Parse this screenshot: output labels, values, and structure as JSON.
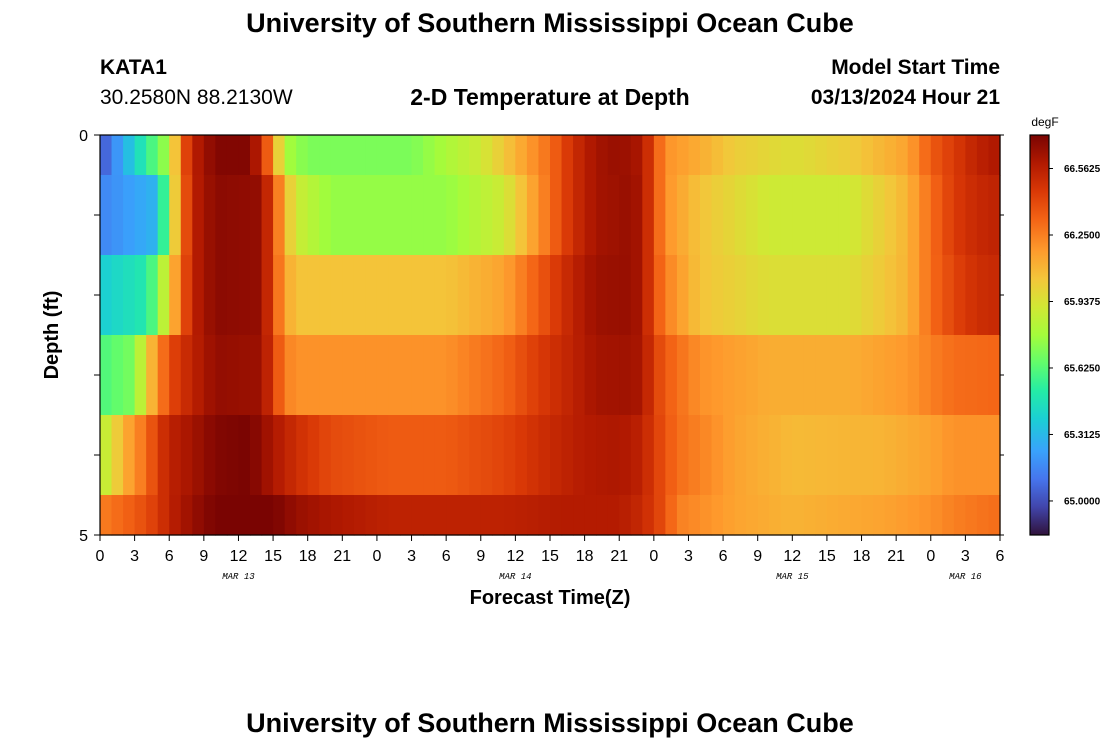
{
  "page": {
    "title": "University of Southern Mississippi Ocean Cube",
    "footer_title": "University of Southern Mississippi Ocean Cube",
    "station_id": "KATA1",
    "station_coords": "30.2580N  88.2130W",
    "plot_title": "2-D Temperature at Depth",
    "model_start_label": "Model Start Time",
    "model_start_value": "03/13/2024 Hour 21"
  },
  "chart_data": {
    "type": "heatmap",
    "title": "2-D Temperature at Depth",
    "xlabel": "Forecast Time(Z)",
    "ylabel": "Depth (ft)",
    "y_tick_labels": [
      "0",
      "5"
    ],
    "ylim": [
      0,
      5
    ],
    "xlim_hours": [
      0,
      78
    ],
    "x_tick_labels": [
      "0",
      "3",
      "6",
      "9",
      "12",
      "15",
      "18",
      "21",
      "0",
      "3",
      "6",
      "9",
      "12",
      "15",
      "18",
      "21",
      "0",
      "3",
      "6",
      "9",
      "12",
      "15",
      "18",
      "21",
      "0",
      "3",
      "6"
    ],
    "date_labels": [
      {
        "label": "MAR 13",
        "hour": 12
      },
      {
        "label": "MAR 14",
        "hour": 36
      },
      {
        "label": "MAR 15",
        "hour": 60
      },
      {
        "label": "MAR 16",
        "hour": 75
      }
    ],
    "colorbar": {
      "units": "degF",
      "min": 64.84,
      "max": 66.72,
      "tick_labels": [
        "65.0000",
        "65.3125",
        "65.6250",
        "65.9375",
        "66.2500",
        "66.5625"
      ],
      "tick_values": [
        65.0,
        65.3125,
        65.625,
        65.9375,
        66.25,
        66.5625
      ]
    },
    "row_depth_ranges": [
      [
        0,
        0.5
      ],
      [
        0.5,
        1.5
      ],
      [
        1.5,
        2.5
      ],
      [
        2.5,
        3.5
      ],
      [
        3.5,
        4.5
      ],
      [
        4.5,
        5.0
      ]
    ],
    "row_keyframes": [
      [
        [
          0,
          65.0
        ],
        [
          3,
          65.4
        ],
        [
          6,
          65.8
        ],
        [
          7,
          66.3
        ],
        [
          8,
          66.55
        ],
        [
          10,
          66.7
        ],
        [
          13,
          66.7
        ],
        [
          14,
          66.5
        ],
        [
          15,
          66.2
        ],
        [
          16,
          65.8
        ],
        [
          18,
          65.7
        ],
        [
          27,
          65.7
        ],
        [
          33,
          65.9
        ],
        [
          36,
          66.1
        ],
        [
          39,
          66.3
        ],
        [
          41,
          66.5
        ],
        [
          43,
          66.62
        ],
        [
          45,
          66.65
        ],
        [
          47,
          66.6
        ],
        [
          48,
          66.4
        ],
        [
          49,
          66.2
        ],
        [
          52,
          66.12
        ],
        [
          55,
          66.02
        ],
        [
          60,
          65.95
        ],
        [
          65,
          66.02
        ],
        [
          70,
          66.15
        ],
        [
          72,
          66.35
        ],
        [
          74,
          66.45
        ],
        [
          76,
          66.55
        ],
        [
          78,
          66.6
        ]
      ],
      [
        [
          0,
          65.15
        ],
        [
          5,
          65.3
        ],
        [
          6,
          65.8
        ],
        [
          7,
          66.25
        ],
        [
          8,
          66.55
        ],
        [
          10,
          66.68
        ],
        [
          14,
          66.66
        ],
        [
          15,
          66.4
        ],
        [
          16,
          66.1
        ],
        [
          17,
          65.9
        ],
        [
          20,
          65.75
        ],
        [
          30,
          65.75
        ],
        [
          35,
          65.9
        ],
        [
          38,
          66.2
        ],
        [
          41,
          66.5
        ],
        [
          43,
          66.62
        ],
        [
          46,
          66.65
        ],
        [
          47,
          66.6
        ],
        [
          48,
          66.4
        ],
        [
          49,
          66.2
        ],
        [
          52,
          66.05
        ],
        [
          58,
          65.9
        ],
        [
          65,
          65.9
        ],
        [
          70,
          66.1
        ],
        [
          72,
          66.3
        ],
        [
          74,
          66.45
        ],
        [
          76,
          66.52
        ],
        [
          78,
          66.55
        ]
      ],
      [
        [
          0,
          65.38
        ],
        [
          4,
          65.5
        ],
        [
          5,
          65.7
        ],
        [
          6,
          66.0
        ],
        [
          7,
          66.3
        ],
        [
          8,
          66.55
        ],
        [
          10,
          66.68
        ],
        [
          14,
          66.66
        ],
        [
          15,
          66.4
        ],
        [
          16,
          66.15
        ],
        [
          17,
          66.05
        ],
        [
          30,
          66.05
        ],
        [
          35,
          66.15
        ],
        [
          38,
          66.35
        ],
        [
          41,
          66.55
        ],
        [
          43,
          66.64
        ],
        [
          46,
          66.65
        ],
        [
          47,
          66.6
        ],
        [
          48,
          66.4
        ],
        [
          49,
          66.25
        ],
        [
          52,
          66.05
        ],
        [
          58,
          65.95
        ],
        [
          65,
          65.95
        ],
        [
          70,
          66.1
        ],
        [
          72,
          66.3
        ],
        [
          74,
          66.42
        ],
        [
          76,
          66.5
        ],
        [
          78,
          66.52
        ]
      ],
      [
        [
          0,
          65.6
        ],
        [
          3,
          65.7
        ],
        [
          4,
          66.0
        ],
        [
          5,
          66.2
        ],
        [
          6,
          66.4
        ],
        [
          8,
          66.55
        ],
        [
          10,
          66.66
        ],
        [
          14,
          66.64
        ],
        [
          15,
          66.45
        ],
        [
          16,
          66.25
        ],
        [
          17,
          66.2
        ],
        [
          30,
          66.2
        ],
        [
          35,
          66.32
        ],
        [
          38,
          66.45
        ],
        [
          41,
          66.55
        ],
        [
          43,
          66.62
        ],
        [
          46,
          66.63
        ],
        [
          47,
          66.6
        ],
        [
          48,
          66.45
        ],
        [
          49,
          66.35
        ],
        [
          52,
          66.2
        ],
        [
          58,
          66.12
        ],
        [
          65,
          66.12
        ],
        [
          70,
          66.18
        ],
        [
          72,
          66.25
        ],
        [
          74,
          66.3
        ],
        [
          78,
          66.32
        ]
      ],
      [
        [
          0,
          65.82
        ],
        [
          1,
          65.95
        ],
        [
          2,
          66.1
        ],
        [
          4,
          66.3
        ],
        [
          5,
          66.45
        ],
        [
          6,
          66.55
        ],
        [
          8,
          66.62
        ],
        [
          10,
          66.7
        ],
        [
          13,
          66.72
        ],
        [
          15,
          66.6
        ],
        [
          17,
          66.5
        ],
        [
          20,
          66.4
        ],
        [
          25,
          66.35
        ],
        [
          30,
          66.35
        ],
        [
          35,
          66.42
        ],
        [
          39,
          66.52
        ],
        [
          42,
          66.58
        ],
        [
          45,
          66.6
        ],
        [
          47,
          66.55
        ],
        [
          48,
          66.45
        ],
        [
          50,
          66.3
        ],
        [
          55,
          66.15
        ],
        [
          60,
          66.08
        ],
        [
          68,
          66.1
        ],
        [
          72,
          66.15
        ],
        [
          74,
          66.2
        ],
        [
          78,
          66.2
        ]
      ],
      [
        [
          0,
          66.25
        ],
        [
          3,
          66.35
        ],
        [
          5,
          66.45
        ],
        [
          6,
          66.55
        ],
        [
          8,
          66.65
        ],
        [
          10,
          66.72
        ],
        [
          13,
          66.74
        ],
        [
          15,
          66.72
        ],
        [
          17,
          66.65
        ],
        [
          20,
          66.6
        ],
        [
          25,
          66.55
        ],
        [
          30,
          66.55
        ],
        [
          35,
          66.55
        ],
        [
          40,
          66.58
        ],
        [
          45,
          66.58
        ],
        [
          47,
          66.52
        ],
        [
          49,
          66.38
        ],
        [
          50,
          66.25
        ],
        [
          55,
          66.15
        ],
        [
          60,
          66.1
        ],
        [
          68,
          66.15
        ],
        [
          72,
          66.2
        ],
        [
          74,
          66.25
        ],
        [
          78,
          66.3
        ]
      ]
    ]
  }
}
